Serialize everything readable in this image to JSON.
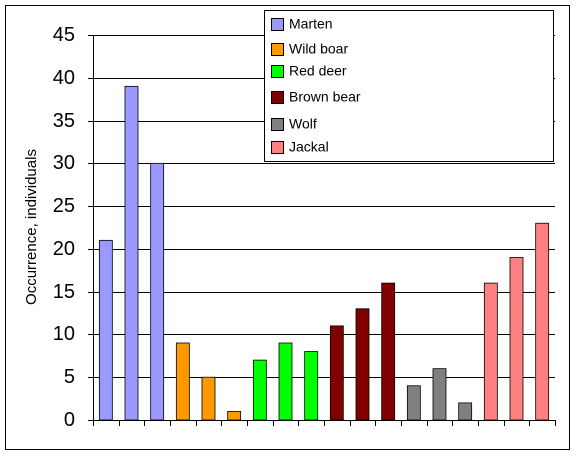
{
  "chart_data": {
    "type": "bar",
    "y_label": "Occurrence, individuals",
    "categories": [
      null,
      null,
      null,
      null,
      null,
      null,
      null,
      null,
      null,
      null,
      null,
      null,
      null,
      null,
      null,
      null,
      null,
      null
    ],
    "series": [
      {
        "name": "Marten",
        "color": "#9999ff",
        "values": [
          21,
          39,
          30,
          null,
          null,
          null,
          null,
          null,
          null,
          null,
          null,
          null,
          null,
          null,
          null,
          null,
          null,
          null
        ]
      },
      {
        "name": "Wild boar",
        "color": "#ff9900",
        "values": [
          null,
          null,
          null,
          9,
          5,
          1,
          null,
          null,
          null,
          null,
          null,
          null,
          null,
          null,
          null,
          null,
          null,
          null
        ]
      },
      {
        "name": "Red deer",
        "color": "#00ff00",
        "values": [
          null,
          null,
          null,
          null,
          null,
          null,
          7,
          9,
          8,
          null,
          null,
          null,
          null,
          null,
          null,
          null,
          null,
          null
        ]
      },
      {
        "name": "Brown bear",
        "color": "#800000",
        "values": [
          null,
          null,
          null,
          null,
          null,
          null,
          null,
          null,
          null,
          11,
          13,
          16,
          null,
          null,
          null,
          null,
          null,
          null
        ]
      },
      {
        "name": "Wolf",
        "color": "#808080",
        "values": [
          null,
          null,
          null,
          null,
          null,
          null,
          null,
          null,
          null,
          null,
          null,
          null,
          4,
          6,
          2,
          null,
          null,
          null
        ]
      },
      {
        "name": "Jackal",
        "color": "#ff8080",
        "values": [
          null,
          null,
          null,
          null,
          null,
          null,
          null,
          null,
          null,
          null,
          null,
          null,
          null,
          null,
          null,
          16,
          19,
          23
        ]
      }
    ],
    "ylim": [
      0,
      45
    ],
    "yticks": [
      0,
      5,
      10,
      15,
      20,
      25,
      30,
      35,
      40,
      45
    ],
    "grid": true
  }
}
